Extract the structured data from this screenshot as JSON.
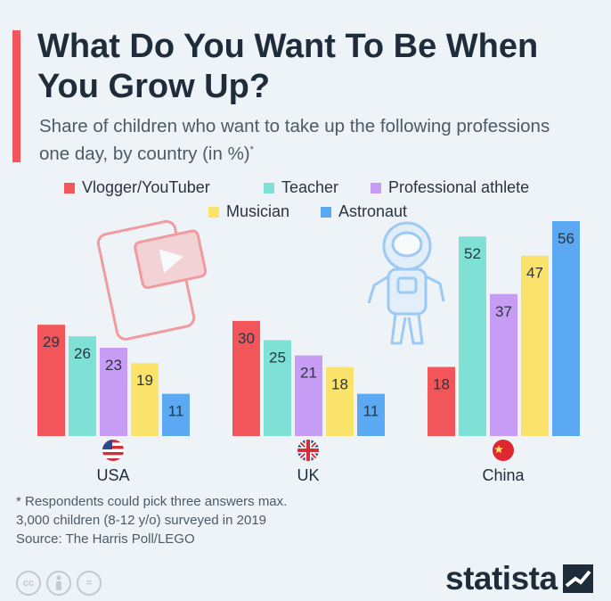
{
  "header": {
    "title": "What Do You Want To Be When You Grow Up?",
    "subtitle": "Share of children who want to take up the following professions one day, by country (in %)",
    "subtitle_marker": "*"
  },
  "chart_data": {
    "type": "bar",
    "title": "What Do You Want To Be When You Grow Up?",
    "subtitle": "Share of children who want to take up the following professions one day, by country (in %)",
    "categories": [
      "USA",
      "UK",
      "China"
    ],
    "series": [
      {
        "name": "Vlogger/YouTuber",
        "color": "#f2555a",
        "values": [
          29,
          30,
          18
        ]
      },
      {
        "name": "Teacher",
        "color": "#7fe0d6",
        "values": [
          26,
          25,
          52
        ]
      },
      {
        "name": "Professional athlete",
        "color": "#c79cf5",
        "values": [
          23,
          21,
          37
        ]
      },
      {
        "name": "Musician",
        "color": "#fbe36b",
        "values": [
          19,
          18,
          47
        ]
      },
      {
        "name": "Astronaut",
        "color": "#5aa9f2",
        "values": [
          11,
          11,
          56
        ]
      }
    ],
    "legend_position": "top",
    "ylim": [
      0,
      56
    ],
    "grid": false,
    "data_labels": true
  },
  "icons": {
    "decorations": [
      "phone-video-icon",
      "astronaut-icon"
    ],
    "flags": [
      "usa-flag-icon",
      "uk-flag-icon",
      "china-flag-icon"
    ]
  },
  "footer": {
    "notes": [
      "* Respondents could pick three answers max.",
      "3,000 children (8-12 y/o) surveyed in 2019",
      "Source: The Harris Poll/LEGO"
    ],
    "license_icons": [
      "cc",
      "by",
      "="
    ],
    "brand": "statista"
  }
}
